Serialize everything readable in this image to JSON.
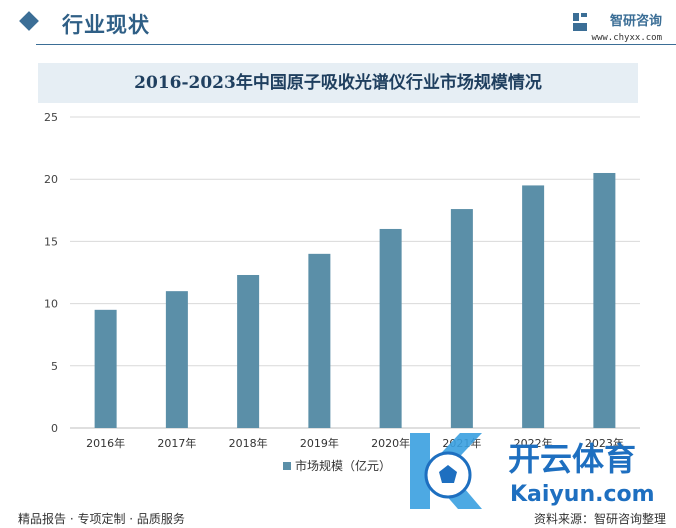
{
  "header": {
    "section_title": "行业现状",
    "brand_name": "智研咨询",
    "brand_url": "www.chyxx.com",
    "accent_color": "#3b6e96"
  },
  "footer": {
    "left_text": "精品报告 · 专项定制 · 品质服务",
    "right_text": "资料来源：智研咨询整理"
  },
  "watermark": {
    "brand_text": "开云体育",
    "url_text": "Kaiyun.com",
    "icon": "soccer-ball-icon"
  },
  "chart_data": {
    "type": "bar",
    "title": "2016-2023年中国原子吸收光谱仪行业市场规模情况",
    "categories": [
      "2016年",
      "2017年",
      "2018年",
      "2019年",
      "2020年",
      "2021年",
      "2022年",
      "2023年"
    ],
    "series": [
      {
        "name": "市场规模（亿元）",
        "values": [
          9.5,
          11.0,
          12.3,
          14.0,
          16.0,
          17.6,
          19.5,
          20.5
        ],
        "color": "#5b8fa8"
      }
    ],
    "ylim": [
      0,
      25
    ],
    "yticks": [
      0,
      5,
      10,
      15,
      20,
      25
    ],
    "grid": true,
    "legend": "bottom"
  }
}
